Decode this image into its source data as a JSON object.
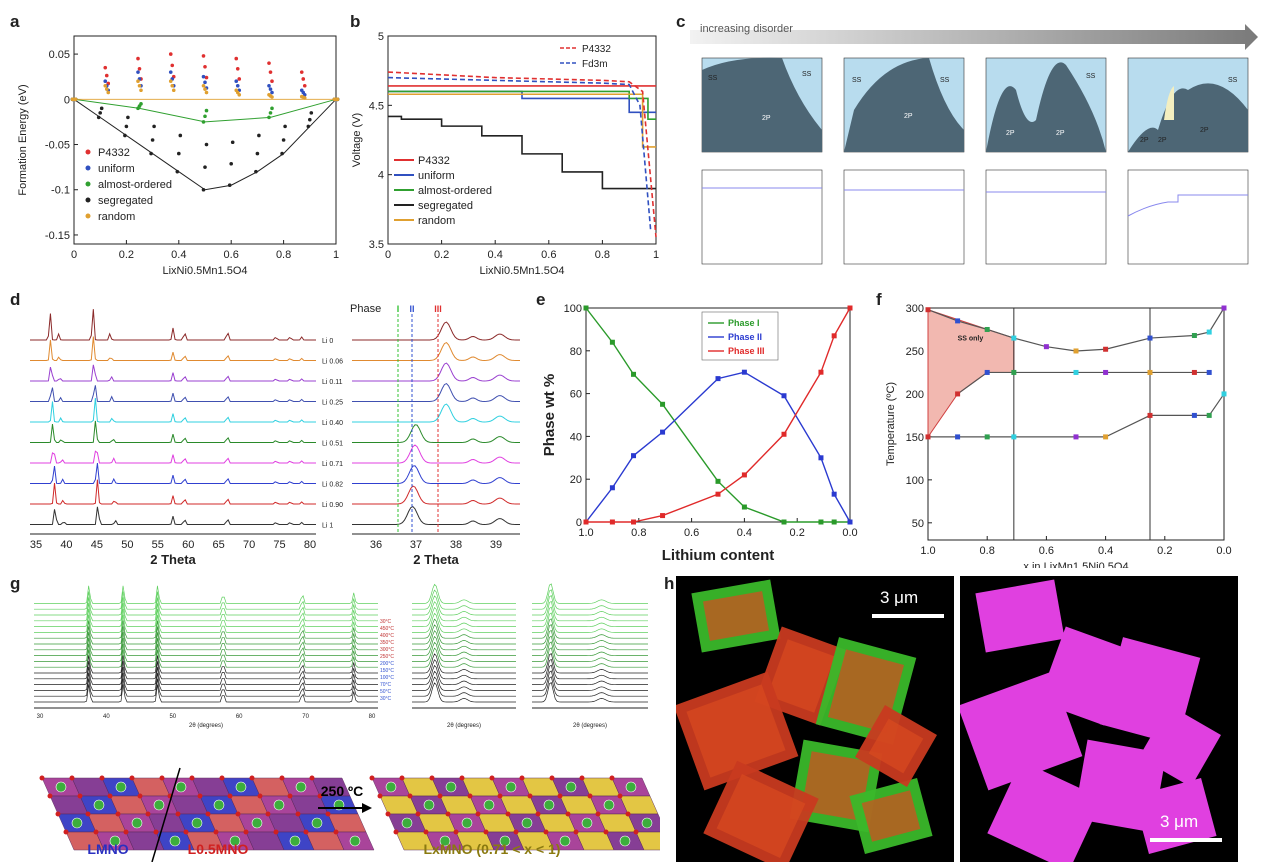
{
  "panels": {
    "a": {
      "label": "a"
    },
    "b": {
      "label": "b"
    },
    "c": {
      "label": "c",
      "banner": "increasing disorder",
      "pd_labels": [
        [
          "SS",
          "SS",
          "2P"
        ],
        [
          "SS",
          "SS",
          "2P"
        ],
        [
          "2P",
          "2P",
          "SS"
        ],
        [
          "SS",
          "2P",
          "2P",
          "2P"
        ]
      ]
    },
    "d": {
      "label": "d",
      "phase_label": "Phase",
      "phase_marks": [
        "I",
        "II",
        "III"
      ]
    },
    "e": {
      "label": "e"
    },
    "f": {
      "label": "f"
    },
    "g": {
      "label": "g",
      "arrow_text": "250 ºC",
      "lmno": "LMNO",
      "l05": "L0.5MNO",
      "lx": "LxMNO (0.71 < x < 1)"
    },
    "h": {
      "label": "h",
      "scale_left": "3 μm",
      "scale_right": "3 μm"
    }
  },
  "chart_data": [
    {
      "id": "a",
      "type": "scatter",
      "xlabel": "LixNi0.5Mn1.5O4",
      "ylabel": "Formation Energy (eV)",
      "xlim": [
        0,
        1
      ],
      "ylim": [
        -0.16,
        0.07
      ],
      "xticks": [
        "0",
        "0.2",
        "0.4",
        "0.6",
        "0.8",
        "1"
      ],
      "yticks": [
        "0.05",
        "0",
        "-0.05",
        "-0.1",
        "-0.15"
      ],
      "legend": [
        "P4332",
        "uniform",
        "almost-ordered",
        "segregated",
        "random"
      ],
      "legend_position": "bottom-left",
      "series": [
        {
          "name": "P4332",
          "color": "#e03030",
          "x": [
            0,
            0.125,
            0.25,
            0.375,
            0.5,
            0.625,
            0.75,
            0.875,
            1
          ],
          "y": [
            0,
            0.035,
            0.045,
            0.05,
            0.048,
            0.045,
            0.04,
            0.03,
            0
          ]
        },
        {
          "name": "uniform",
          "color": "#3050c0",
          "x": [
            0,
            0.125,
            0.25,
            0.375,
            0.5,
            0.625,
            0.75,
            0.875,
            1
          ],
          "y": [
            0,
            0.02,
            0.03,
            0.03,
            0.025,
            0.02,
            0.015,
            0.01,
            0
          ]
        },
        {
          "name": "almost-ordered",
          "color": "#30a030",
          "x": [
            0,
            0.25,
            0.5,
            0.75,
            1
          ],
          "y": [
            0,
            -0.01,
            -0.025,
            -0.02,
            0
          ]
        },
        {
          "name": "segregated",
          "color": "#222222",
          "x": [
            0,
            0.1,
            0.2,
            0.3,
            0.4,
            0.5,
            0.6,
            0.7,
            0.8,
            0.9,
            1
          ],
          "y": [
            0,
            -0.02,
            -0.04,
            -0.06,
            -0.08,
            -0.1,
            -0.095,
            -0.08,
            -0.06,
            -0.03,
            0
          ]
        },
        {
          "name": "random",
          "color": "#e0a030",
          "x": [
            0,
            0.125,
            0.25,
            0.375,
            0.5,
            0.625,
            0.75,
            0.875,
            1
          ],
          "y": [
            0,
            0.015,
            0.02,
            0.02,
            0.015,
            0.01,
            0.005,
            0.003,
            0
          ]
        }
      ]
    },
    {
      "id": "b",
      "type": "line",
      "xlabel": "LixNi0.5Mn1.5O4",
      "ylabel": "Voltage (V)",
      "xlim": [
        0,
        1
      ],
      "ylim": [
        3.5,
        5.0
      ],
      "xticks": [
        "0",
        "0.2",
        "0.4",
        "0.6",
        "0.8",
        "1"
      ],
      "yticks": [
        "5",
        "4.5",
        "4",
        "3.5"
      ],
      "legend_top": [
        "P4332",
        "Fd3m"
      ],
      "legend": [
        "P4332",
        "uniform",
        "almost-ordered",
        "segregated",
        "random"
      ],
      "series": [
        {
          "name": "P4332",
          "color": "#e03030",
          "x": [
            0,
            0.96,
            0.96,
            1
          ],
          "y": [
            4.64,
            4.64,
            4.64,
            4.64
          ]
        },
        {
          "name": "uniform",
          "color": "#3050c0",
          "x": [
            0,
            0.5,
            0.5,
            0.9,
            0.9,
            1
          ],
          "y": [
            4.6,
            4.6,
            4.55,
            4.55,
            4.45,
            4.45
          ]
        },
        {
          "name": "almost-ordered",
          "color": "#30a030",
          "x": [
            0,
            0.9,
            0.9,
            0.97,
            0.97,
            1
          ],
          "y": [
            4.6,
            4.6,
            4.55,
            4.55,
            4.4,
            4.4
          ]
        },
        {
          "name": "segregated",
          "color": "#222222",
          "x": [
            0,
            0.05,
            0.05,
            0.2,
            0.2,
            0.35,
            0.35,
            0.5,
            0.5,
            0.65,
            0.65,
            0.8,
            0.8,
            0.95,
            0.95,
            1
          ],
          "y": [
            4.42,
            4.42,
            4.4,
            4.4,
            4.35,
            4.35,
            4.28,
            4.28,
            4.15,
            4.15,
            4.02,
            4.02,
            3.9,
            3.9,
            3.9,
            3.9
          ]
        },
        {
          "name": "random",
          "color": "#e0a030",
          "x": [
            0,
            0.95,
            0.95,
            1
          ],
          "y": [
            4.58,
            4.58,
            4.2,
            4.2
          ]
        }
      ],
      "dashed": [
        {
          "name": "P4332",
          "color": "#e03030",
          "x": [
            0,
            0.2,
            0.4,
            0.6,
            0.8,
            0.9,
            0.95,
            1
          ],
          "y": [
            4.74,
            4.72,
            4.7,
            4.69,
            4.68,
            4.67,
            4.6,
            3.55
          ]
        },
        {
          "name": "Fd3m",
          "color": "#3050c0",
          "x": [
            0,
            0.2,
            0.4,
            0.6,
            0.8,
            0.9,
            0.94,
            0.98
          ],
          "y": [
            4.7,
            4.69,
            4.68,
            4.67,
            4.66,
            4.65,
            4.5,
            3.6
          ]
        }
      ]
    },
    {
      "id": "e",
      "type": "line",
      "xlabel": "Lithium content",
      "ylabel": "Phase wt %",
      "xlim": [
        1.0,
        0.0
      ],
      "ylim": [
        0,
        100
      ],
      "xticks": [
        "1.0",
        "0.8",
        "0.6",
        "0.4",
        "0.2",
        "0.0"
      ],
      "yticks": [
        "0",
        "20",
        "40",
        "60",
        "80",
        "100"
      ],
      "legend_position": "top-right",
      "series": [
        {
          "name": "Phase I",
          "color": "#2a9a2a",
          "x": [
            1.0,
            0.9,
            0.82,
            0.71,
            0.5,
            0.4,
            0.25,
            0.11,
            0.06,
            0.0
          ],
          "y": [
            100,
            84,
            69,
            55,
            19,
            7,
            0,
            0,
            0,
            0
          ]
        },
        {
          "name": "Phase II",
          "color": "#2a3ad0",
          "x": [
            1.0,
            0.9,
            0.82,
            0.71,
            0.5,
            0.4,
            0.25,
            0.11,
            0.06,
            0.0
          ],
          "y": [
            0,
            16,
            31,
            42,
            67,
            70,
            59,
            30,
            13,
            0
          ]
        },
        {
          "name": "Phase III",
          "color": "#e02a2a",
          "x": [
            1.0,
            0.9,
            0.82,
            0.71,
            0.5,
            0.4,
            0.25,
            0.11,
            0.06,
            0.0
          ],
          "y": [
            0,
            0,
            0,
            3,
            13,
            22,
            41,
            70,
            87,
            100
          ]
        }
      ]
    },
    {
      "id": "f",
      "type": "line",
      "xlabel": "x in LixMn1.5Ni0.5O4",
      "ylabel": "Temperature (ºC)",
      "xlim": [
        1.0,
        0.0
      ],
      "ylim": [
        30,
        300
      ],
      "xticks": [
        "1.0",
        "0.8",
        "0.6",
        "0.4",
        "0.2",
        "0.0"
      ],
      "yticks": [
        "50",
        "100",
        "150",
        "200",
        "250",
        "300"
      ],
      "region_label": "SS only",
      "vertical_lines": [
        0.71,
        0.25
      ],
      "series": [
        {
          "name": "upper",
          "color": "#555555",
          "x": [
            1.0,
            0.9,
            0.8,
            0.71,
            0.6,
            0.5,
            0.4,
            0.25,
            0.1,
            0.05,
            0.0
          ],
          "y": [
            298,
            285,
            275,
            265,
            255,
            250,
            252,
            265,
            268,
            272,
            300
          ]
        },
        {
          "name": "middle",
          "color": "#555555",
          "x": [
            0.9,
            0.8,
            0.71,
            0.5,
            0.4,
            0.25,
            0.1,
            0.05
          ],
          "y": [
            200,
            225,
            225,
            225,
            225,
            225,
            225,
            225
          ]
        },
        {
          "name": "lower",
          "color": "#555555",
          "x": [
            1.0,
            0.9,
            0.8,
            0.71,
            0.5,
            0.4,
            0.25,
            0.1,
            0.05,
            0.0
          ],
          "y": [
            150,
            150,
            150,
            150,
            150,
            150,
            175,
            175,
            175,
            200
          ]
        }
      ]
    },
    {
      "id": "d",
      "type": "line",
      "xlabel": "2 Theta",
      "xticks": [
        "35",
        "40",
        "45",
        "50",
        "55",
        "60",
        "65",
        "70",
        "75",
        "80"
      ],
      "xticks_zoom": [
        "36",
        "37",
        "38",
        "39"
      ],
      "legend": [
        "Li 0",
        "Li 0.06",
        "Li 0.11",
        "Li 0.25",
        "Li 0.40",
        "Li 0.51",
        "Li 0.71",
        "Li 0.82",
        "Li 0.90",
        "Li 1"
      ],
      "colors": [
        "#8b2a2a",
        "#e08a30",
        "#9a40d0",
        "#4050b0",
        "#30d0e0",
        "#2a8a2a",
        "#e040e0",
        "#3040d0",
        "#d02a2a",
        "#333333"
      ]
    },
    {
      "id": "g",
      "type": "line",
      "xlabel": "2θ (degrees)",
      "xticks": [
        "30",
        "40",
        "50",
        "60",
        "70",
        "80"
      ],
      "temps": [
        "30°C",
        "50°C",
        "70°C",
        "100°C",
        "150°C",
        "200°C",
        "250°C",
        "300°C",
        "350°C",
        "400°C",
        "450°C",
        "30°C"
      ]
    }
  ]
}
